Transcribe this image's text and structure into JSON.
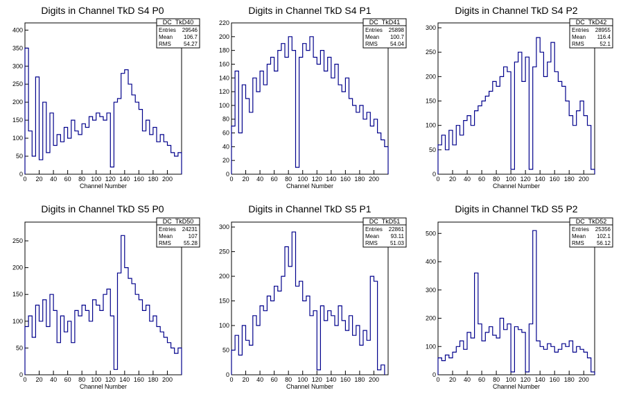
{
  "chart_data": [
    {
      "type": "histogram",
      "title": "Digits in Channel TkD S4 P0",
      "xlabel": "Channel Number",
      "xlim": [
        0,
        220
      ],
      "ylim": [
        0,
        420
      ],
      "xticks": [
        0,
        20,
        40,
        60,
        80,
        100,
        120,
        140,
        160,
        180,
        200
      ],
      "yticks": [
        0,
        50,
        100,
        150,
        200,
        250,
        300,
        350,
        400
      ],
      "stats": {
        "name": "DC_TkD40",
        "entries_label": "Entries",
        "entries": "29546",
        "mean_label": "Mean",
        "mean": "106.7",
        "rms_label": "RMS",
        "rms": "54.27"
      },
      "x": [
        0,
        5,
        10,
        15,
        20,
        25,
        30,
        35,
        40,
        45,
        50,
        55,
        60,
        65,
        70,
        75,
        80,
        85,
        90,
        95,
        100,
        105,
        110,
        115,
        120,
        125,
        130,
        135,
        140,
        145,
        150,
        155,
        160,
        165,
        170,
        175,
        180,
        185,
        190,
        195,
        200,
        205,
        210,
        215
      ],
      "values": [
        350,
        120,
        50,
        270,
        40,
        200,
        60,
        170,
        80,
        110,
        90,
        130,
        100,
        150,
        120,
        110,
        140,
        130,
        160,
        150,
        170,
        160,
        150,
        170,
        20,
        200,
        210,
        280,
        290,
        250,
        220,
        200,
        180,
        120,
        150,
        110,
        130,
        90,
        110,
        90,
        80,
        60,
        50,
        60
      ]
    },
    {
      "type": "histogram",
      "title": "Digits in Channel TkD S4 P1",
      "xlabel": "Channel Number",
      "xlim": [
        0,
        220
      ],
      "ylim": [
        0,
        220
      ],
      "xticks": [
        0,
        20,
        40,
        60,
        80,
        100,
        120,
        140,
        160,
        180,
        200
      ],
      "yticks": [
        0,
        20,
        40,
        60,
        80,
        100,
        120,
        140,
        160,
        180,
        200,
        220
      ],
      "stats": {
        "name": "DC_TkD41",
        "entries_label": "Entries",
        "entries": "25898",
        "mean_label": "Mean",
        "mean": "100.7",
        "rms_label": "RMS",
        "rms": "54.04"
      },
      "x": [
        0,
        5,
        10,
        15,
        20,
        25,
        30,
        35,
        40,
        45,
        50,
        55,
        60,
        65,
        70,
        75,
        80,
        85,
        90,
        95,
        100,
        105,
        110,
        115,
        120,
        125,
        130,
        135,
        140,
        145,
        150,
        155,
        160,
        165,
        170,
        175,
        180,
        185,
        190,
        195,
        200,
        205,
        210,
        215
      ],
      "values": [
        70,
        150,
        60,
        130,
        110,
        90,
        140,
        120,
        150,
        130,
        160,
        170,
        150,
        180,
        190,
        170,
        200,
        180,
        10,
        170,
        190,
        180,
        200,
        170,
        160,
        180,
        150,
        170,
        140,
        160,
        130,
        120,
        140,
        110,
        100,
        90,
        100,
        80,
        90,
        70,
        80,
        60,
        50,
        40
      ]
    },
    {
      "type": "histogram",
      "title": "Digits in Channel TkD S4 P2",
      "xlabel": "Channel Number",
      "xlim": [
        0,
        215
      ],
      "ylim": [
        0,
        310
      ],
      "xticks": [
        0,
        20,
        40,
        60,
        80,
        100,
        120,
        140,
        160,
        180,
        200
      ],
      "yticks": [
        0,
        50,
        100,
        150,
        200,
        250,
        300
      ],
      "stats": {
        "name": "DC_TkD42",
        "entries_label": "Entries",
        "entries": "28955",
        "mean_label": "Mean",
        "mean": "116.4",
        "rms_label": "RMS",
        "rms": "52.1"
      },
      "x": [
        0,
        5,
        10,
        15,
        20,
        25,
        30,
        35,
        40,
        45,
        50,
        55,
        60,
        65,
        70,
        75,
        80,
        85,
        90,
        95,
        100,
        105,
        110,
        115,
        120,
        125,
        130,
        135,
        140,
        145,
        150,
        155,
        160,
        165,
        170,
        175,
        180,
        185,
        190,
        195,
        200,
        205,
        210
      ],
      "values": [
        60,
        80,
        50,
        90,
        60,
        100,
        80,
        110,
        120,
        100,
        130,
        140,
        150,
        160,
        170,
        190,
        180,
        200,
        220,
        210,
        10,
        230,
        250,
        190,
        240,
        10,
        220,
        280,
        250,
        200,
        230,
        270,
        210,
        190,
        180,
        150,
        120,
        100,
        130,
        150,
        120,
        100,
        10
      ]
    },
    {
      "type": "histogram",
      "title": "Digits in Channel TkD S5 P0",
      "xlabel": "Channel Number",
      "xlim": [
        0,
        220
      ],
      "ylim": [
        0,
        285
      ],
      "xticks": [
        0,
        20,
        40,
        60,
        80,
        100,
        120,
        140,
        160,
        180,
        200
      ],
      "yticks": [
        0,
        50,
        100,
        150,
        200,
        250
      ],
      "stats": {
        "name": "DC_TkD50",
        "entries_label": "Entries",
        "entries": "24231",
        "mean_label": "Mean",
        "mean": "107",
        "rms_label": "RMS",
        "rms": "55.28"
      },
      "x": [
        0,
        5,
        10,
        15,
        20,
        25,
        30,
        35,
        40,
        45,
        50,
        55,
        60,
        65,
        70,
        75,
        80,
        85,
        90,
        95,
        100,
        105,
        110,
        115,
        120,
        125,
        130,
        135,
        140,
        145,
        150,
        155,
        160,
        165,
        170,
        175,
        180,
        185,
        190,
        195,
        200,
        205,
        210,
        215
      ],
      "values": [
        90,
        110,
        70,
        130,
        100,
        140,
        90,
        150,
        120,
        60,
        110,
        80,
        100,
        60,
        120,
        110,
        130,
        120,
        100,
        140,
        130,
        120,
        150,
        160,
        110,
        10,
        190,
        260,
        200,
        180,
        170,
        150,
        140,
        120,
        130,
        100,
        110,
        90,
        80,
        70,
        60,
        50,
        40,
        50
      ]
    },
    {
      "type": "histogram",
      "title": "Digits in Channel TkD S5 P1",
      "xlabel": "Channel Number",
      "xlim": [
        0,
        220
      ],
      "ylim": [
        0,
        310
      ],
      "xticks": [
        0,
        20,
        40,
        60,
        80,
        100,
        120,
        140,
        160,
        180,
        200
      ],
      "yticks": [
        0,
        50,
        100,
        150,
        200,
        250,
        300
      ],
      "stats": {
        "name": "DC_TkD51",
        "entries_label": "Entries",
        "entries": "22861",
        "mean_label": "Mean",
        "mean": "93.11",
        "rms_label": "RMS",
        "rms": "51.03"
      },
      "x": [
        0,
        5,
        10,
        15,
        20,
        25,
        30,
        35,
        40,
        45,
        50,
        55,
        60,
        65,
        70,
        75,
        80,
        85,
        90,
        95,
        100,
        105,
        110,
        115,
        120,
        125,
        130,
        135,
        140,
        145,
        150,
        155,
        160,
        165,
        170,
        175,
        180,
        185,
        190,
        195,
        200,
        205,
        210
      ],
      "values": [
        50,
        80,
        40,
        100,
        70,
        60,
        120,
        100,
        140,
        130,
        160,
        150,
        180,
        170,
        200,
        260,
        220,
        290,
        180,
        190,
        150,
        160,
        120,
        130,
        10,
        140,
        110,
        130,
        120,
        100,
        140,
        110,
        90,
        120,
        80,
        100,
        60,
        90,
        70,
        200,
        190,
        10,
        20
      ]
    },
    {
      "type": "histogram",
      "title": "Digits in Channel TkD S5 P2",
      "xlabel": "Channel Number",
      "xlim": [
        0,
        215
      ],
      "ylim": [
        0,
        540
      ],
      "xticks": [
        0,
        20,
        40,
        60,
        80,
        100,
        120,
        140,
        160,
        180,
        200
      ],
      "yticks": [
        0,
        100,
        200,
        300,
        400,
        500
      ],
      "stats": {
        "name": "DC_TkD52",
        "entries_label": "Entries",
        "entries": "25356",
        "mean_label": "Mean",
        "mean": "102.1",
        "rms_label": "RMS",
        "rms": "56.12"
      },
      "x": [
        0,
        5,
        10,
        15,
        20,
        25,
        30,
        35,
        40,
        45,
        50,
        55,
        60,
        65,
        70,
        75,
        80,
        85,
        90,
        95,
        100,
        105,
        110,
        115,
        120,
        125,
        130,
        135,
        140,
        145,
        150,
        155,
        160,
        165,
        170,
        175,
        180,
        185,
        190,
        195,
        200,
        205,
        210
      ],
      "values": [
        60,
        50,
        70,
        60,
        80,
        100,
        120,
        90,
        150,
        130,
        360,
        180,
        120,
        150,
        170,
        140,
        130,
        200,
        160,
        180,
        10,
        170,
        160,
        150,
        10,
        180,
        510,
        120,
        100,
        90,
        110,
        100,
        80,
        90,
        110,
        100,
        120,
        80,
        100,
        90,
        80,
        60,
        10
      ]
    }
  ]
}
